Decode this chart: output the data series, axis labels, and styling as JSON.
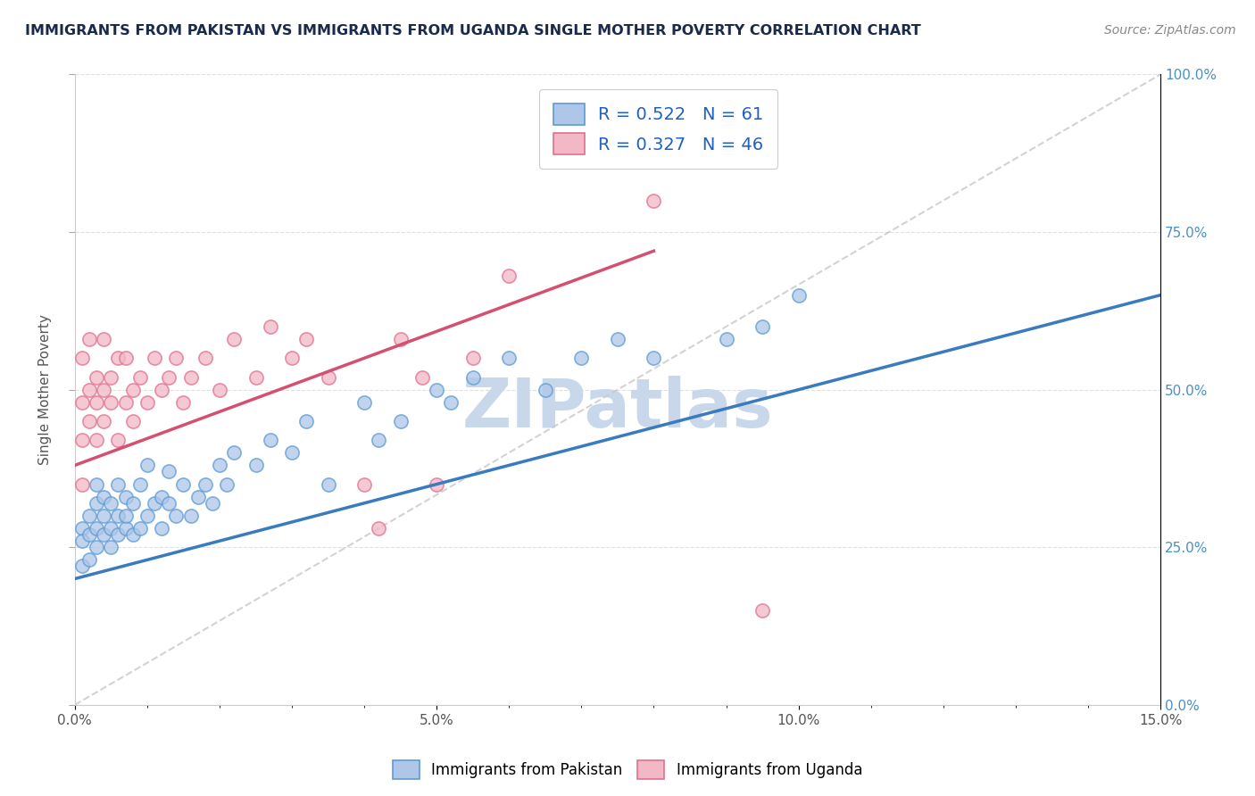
{
  "title": "IMMIGRANTS FROM PAKISTAN VS IMMIGRANTS FROM UGANDA SINGLE MOTHER POVERTY CORRELATION CHART",
  "source": "Source: ZipAtlas.com",
  "ylabel": "Single Mother Poverty",
  "x_min": 0.0,
  "x_max": 0.15,
  "y_min": 0.0,
  "y_max": 1.0,
  "pakistan_R": 0.522,
  "pakistan_N": 61,
  "uganda_R": 0.327,
  "uganda_N": 46,
  "pakistan_color": "#aec6e8",
  "uganda_color": "#f2b8c6",
  "pakistan_edge_color": "#5b9bd5",
  "uganda_edge_color": "#e07090",
  "pakistan_line_color": "#3a7abf",
  "uganda_line_color": "#d45070",
  "diag_line_color": "#c8c8c8",
  "legend_labels": [
    "Immigrants from Pakistan",
    "Immigrants from Uganda"
  ],
  "watermark": "ZIPatlas",
  "watermark_color": "#c8d8ea",
  "title_color": "#1a2a4a",
  "right_axis_color": "#4a90c8",
  "legend_r_color": "#2060c0",
  "pakistan_scatter_x": [
    0.001,
    0.001,
    0.001,
    0.002,
    0.002,
    0.002,
    0.003,
    0.003,
    0.003,
    0.003,
    0.004,
    0.004,
    0.004,
    0.005,
    0.005,
    0.005,
    0.006,
    0.006,
    0.006,
    0.007,
    0.007,
    0.007,
    0.008,
    0.008,
    0.009,
    0.009,
    0.01,
    0.01,
    0.011,
    0.012,
    0.012,
    0.013,
    0.013,
    0.014,
    0.015,
    0.016,
    0.017,
    0.018,
    0.019,
    0.02,
    0.021,
    0.022,
    0.025,
    0.027,
    0.03,
    0.032,
    0.035,
    0.04,
    0.042,
    0.045,
    0.05,
    0.052,
    0.055,
    0.06,
    0.065,
    0.07,
    0.075,
    0.08,
    0.09,
    0.095,
    0.1
  ],
  "pakistan_scatter_y": [
    0.28,
    0.22,
    0.26,
    0.3,
    0.23,
    0.27,
    0.32,
    0.25,
    0.28,
    0.35,
    0.27,
    0.3,
    0.33,
    0.28,
    0.32,
    0.25,
    0.3,
    0.27,
    0.35,
    0.28,
    0.33,
    0.3,
    0.32,
    0.27,
    0.35,
    0.28,
    0.3,
    0.38,
    0.32,
    0.33,
    0.28,
    0.32,
    0.37,
    0.3,
    0.35,
    0.3,
    0.33,
    0.35,
    0.32,
    0.38,
    0.35,
    0.4,
    0.38,
    0.42,
    0.4,
    0.45,
    0.35,
    0.48,
    0.42,
    0.45,
    0.5,
    0.48,
    0.52,
    0.55,
    0.5,
    0.55,
    0.58,
    0.55,
    0.58,
    0.6,
    0.65
  ],
  "uganda_scatter_x": [
    0.001,
    0.001,
    0.001,
    0.001,
    0.002,
    0.002,
    0.002,
    0.003,
    0.003,
    0.003,
    0.004,
    0.004,
    0.004,
    0.005,
    0.005,
    0.006,
    0.006,
    0.007,
    0.007,
    0.008,
    0.008,
    0.009,
    0.01,
    0.011,
    0.012,
    0.013,
    0.014,
    0.015,
    0.016,
    0.018,
    0.02,
    0.022,
    0.025,
    0.027,
    0.03,
    0.032,
    0.035,
    0.04,
    0.042,
    0.045,
    0.048,
    0.05,
    0.055,
    0.06,
    0.08,
    0.095
  ],
  "uganda_scatter_y": [
    0.35,
    0.42,
    0.48,
    0.55,
    0.5,
    0.58,
    0.45,
    0.52,
    0.48,
    0.42,
    0.5,
    0.58,
    0.45,
    0.52,
    0.48,
    0.55,
    0.42,
    0.48,
    0.55,
    0.5,
    0.45,
    0.52,
    0.48,
    0.55,
    0.5,
    0.52,
    0.55,
    0.48,
    0.52,
    0.55,
    0.5,
    0.58,
    0.52,
    0.6,
    0.55,
    0.58,
    0.52,
    0.35,
    0.28,
    0.58,
    0.52,
    0.35,
    0.55,
    0.68,
    0.8,
    0.15
  ],
  "pk_trend_x0": 0.0,
  "pk_trend_y0": 0.2,
  "pk_trend_x1": 0.15,
  "pk_trend_y1": 0.65,
  "ug_trend_x0": 0.0,
  "ug_trend_y0": 0.38,
  "ug_trend_x1": 0.08,
  "ug_trend_y1": 0.72
}
